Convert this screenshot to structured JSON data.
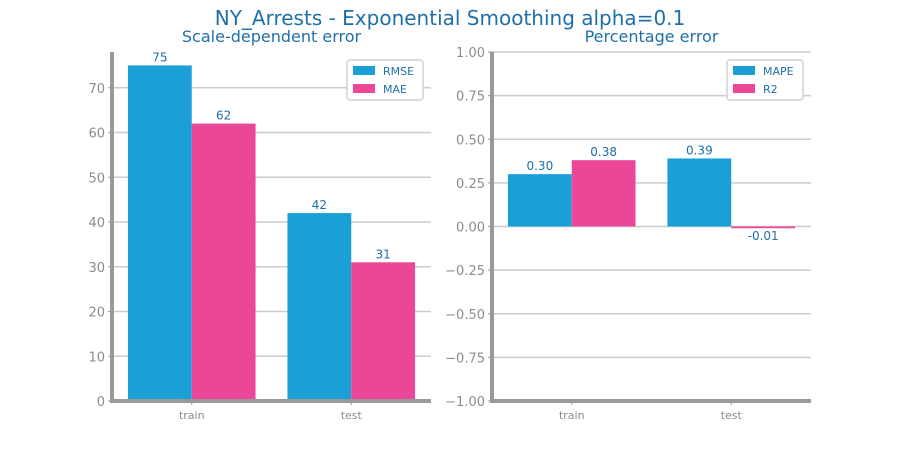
{
  "title": "NY_Arrests - Exponential Smoothing alpha=0.1",
  "colors": {
    "series_1": "#1a9fd6",
    "series_2": "#eb4799",
    "title": "#1f6fa8",
    "tick": "#8c8c8c",
    "grid": "#cccccc",
    "axis": "#999999"
  },
  "chart_data": [
    {
      "type": "bar",
      "title": "Scale-dependent error",
      "categories": [
        "train",
        "test"
      ],
      "series": [
        {
          "name": "RMSE",
          "values": [
            75,
            42
          ],
          "labels": [
            "75",
            "42"
          ]
        },
        {
          "name": "MAE",
          "values": [
            62,
            31
          ],
          "labels": [
            "62",
            "31"
          ]
        }
      ],
      "ylim": [
        0,
        78
      ],
      "yticks": [
        0,
        10,
        20,
        30,
        40,
        50,
        60,
        70
      ],
      "ytick_labels": [
        "0",
        "10",
        "20",
        "30",
        "40",
        "50",
        "60",
        "70"
      ],
      "grid": true,
      "legend": "top-right"
    },
    {
      "type": "bar",
      "title": "Percentage error",
      "categories": [
        "train",
        "test"
      ],
      "series": [
        {
          "name": "MAPE",
          "values": [
            0.3,
            0.39
          ],
          "labels": [
            "0.30",
            "0.39"
          ]
        },
        {
          "name": "R2",
          "values": [
            0.38,
            -0.01
          ],
          "labels": [
            "0.38",
            "-0.01"
          ]
        }
      ],
      "ylim": [
        -1.0,
        1.0
      ],
      "yticks": [
        -1.0,
        -0.75,
        -0.5,
        -0.25,
        0.0,
        0.25,
        0.5,
        0.75,
        1.0
      ],
      "ytick_labels": [
        "−1.00",
        "−0.75",
        "−0.50",
        "−0.25",
        "0.00",
        "0.25",
        "0.50",
        "0.75",
        "1.00"
      ],
      "grid": true,
      "legend": "top-right"
    }
  ]
}
